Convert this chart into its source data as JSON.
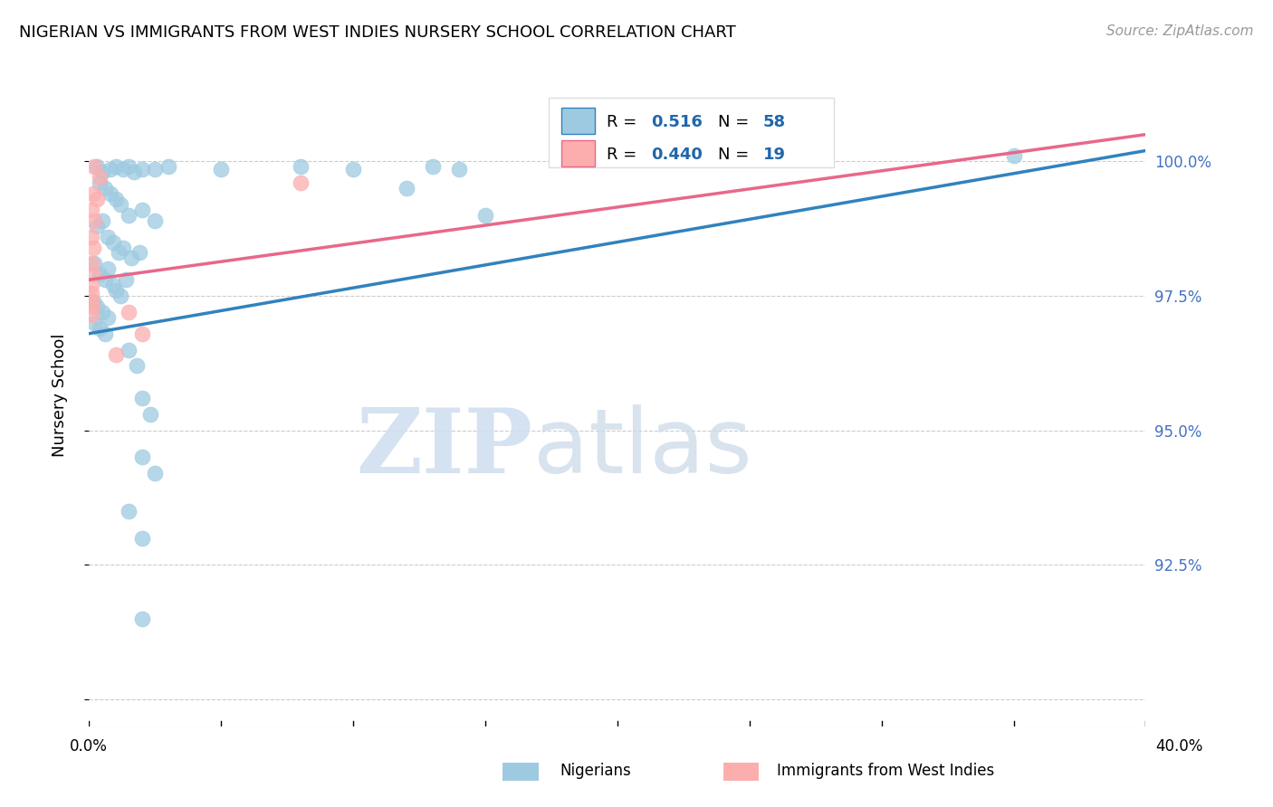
{
  "title": "NIGERIAN VS IMMIGRANTS FROM WEST INDIES NURSERY SCHOOL CORRELATION CHART",
  "source": "Source: ZipAtlas.com",
  "ylabel": "Nursery School",
  "y_ticks": [
    90.0,
    92.5,
    95.0,
    97.5,
    100.0
  ],
  "y_tick_labels": [
    "",
    "92.5%",
    "95.0%",
    "97.5%",
    "100.0%"
  ],
  "x_range": [
    0.0,
    40.0
  ],
  "y_range": [
    89.5,
    101.8
  ],
  "blue_r": 0.516,
  "blue_n": 58,
  "pink_r": 0.44,
  "pink_n": 19,
  "blue_color": "#9ecae1",
  "pink_color": "#fcaeae",
  "blue_line_color": "#3182bd",
  "pink_line_color": "#e8688a",
  "watermark_zip": "ZIP",
  "watermark_atlas": "atlas",
  "legend_label_blue": "Nigerians",
  "legend_label_pink": "Immigrants from West Indies",
  "blue_dots": [
    [
      0.3,
      99.9
    ],
    [
      0.5,
      99.8
    ],
    [
      0.8,
      99.85
    ],
    [
      1.0,
      99.9
    ],
    [
      1.3,
      99.85
    ],
    [
      1.5,
      99.9
    ],
    [
      1.7,
      99.8
    ],
    [
      2.0,
      99.85
    ],
    [
      2.5,
      99.85
    ],
    [
      3.0,
      99.9
    ],
    [
      5.0,
      99.85
    ],
    [
      8.0,
      99.9
    ],
    [
      10.0,
      99.85
    ],
    [
      13.0,
      99.9
    ],
    [
      14.0,
      99.85
    ],
    [
      0.4,
      99.6
    ],
    [
      0.6,
      99.5
    ],
    [
      0.8,
      99.4
    ],
    [
      1.0,
      99.3
    ],
    [
      1.2,
      99.2
    ],
    [
      1.5,
      99.0
    ],
    [
      2.0,
      99.1
    ],
    [
      2.5,
      98.9
    ],
    [
      0.3,
      98.8
    ],
    [
      0.5,
      98.9
    ],
    [
      0.7,
      98.6
    ],
    [
      0.9,
      98.5
    ],
    [
      1.1,
      98.3
    ],
    [
      1.3,
      98.4
    ],
    [
      1.6,
      98.2
    ],
    [
      1.9,
      98.3
    ],
    [
      0.2,
      98.1
    ],
    [
      0.4,
      97.9
    ],
    [
      0.6,
      97.8
    ],
    [
      0.7,
      98.0
    ],
    [
      0.9,
      97.7
    ],
    [
      1.0,
      97.6
    ],
    [
      1.2,
      97.5
    ],
    [
      1.4,
      97.8
    ],
    [
      0.15,
      97.4
    ],
    [
      0.3,
      97.3
    ],
    [
      0.5,
      97.2
    ],
    [
      0.7,
      97.1
    ],
    [
      0.2,
      97.0
    ],
    [
      0.4,
      96.9
    ],
    [
      0.6,
      96.8
    ],
    [
      1.5,
      96.5
    ],
    [
      1.8,
      96.2
    ],
    [
      2.0,
      95.6
    ],
    [
      2.3,
      95.3
    ],
    [
      2.0,
      94.5
    ],
    [
      2.5,
      94.2
    ],
    [
      1.5,
      93.5
    ],
    [
      2.0,
      93.0
    ],
    [
      2.0,
      91.5
    ],
    [
      35.0,
      100.1
    ],
    [
      12.0,
      99.5
    ],
    [
      15.0,
      99.0
    ]
  ],
  "pink_dots": [
    [
      0.2,
      99.9
    ],
    [
      0.4,
      99.7
    ],
    [
      0.15,
      99.4
    ],
    [
      0.3,
      99.3
    ],
    [
      0.1,
      99.1
    ],
    [
      0.2,
      98.9
    ],
    [
      0.08,
      98.6
    ],
    [
      0.15,
      98.4
    ],
    [
      0.1,
      98.1
    ],
    [
      0.15,
      97.9
    ],
    [
      0.08,
      97.7
    ],
    [
      0.1,
      97.55
    ],
    [
      0.08,
      97.4
    ],
    [
      0.12,
      97.3
    ],
    [
      0.1,
      97.15
    ],
    [
      1.5,
      97.2
    ],
    [
      8.0,
      99.6
    ],
    [
      2.0,
      96.8
    ],
    [
      1.0,
      96.4
    ]
  ],
  "blue_trendline": [
    [
      0.0,
      96.8
    ],
    [
      40.0,
      100.2
    ]
  ],
  "pink_trendline": [
    [
      0.0,
      97.8
    ],
    [
      40.0,
      100.5
    ]
  ]
}
